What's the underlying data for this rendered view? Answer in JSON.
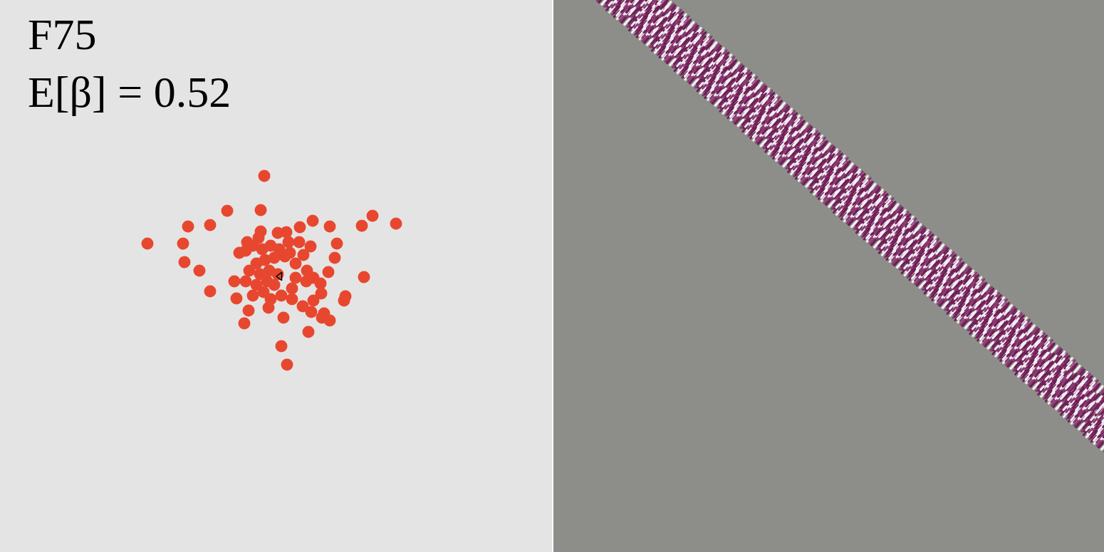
{
  "chart_data": {
    "type": "scatter",
    "title": "F75",
    "subtitle": "E[β] = 0.52",
    "xlim": [
      0,
      775
    ],
    "ylim": [
      0,
      775
    ],
    "tick_labels": false,
    "grid": false,
    "series": [
      {
        "color": "#e8472f",
        "marker": "circle",
        "x": [
          371,
          366,
          319,
          264,
          295,
          207,
          257,
          259,
          280,
          295,
          343,
          332,
          395,
          403,
          433,
          463,
          452,
          483,
          485,
          511,
          461,
          470,
          473,
          463,
          439,
          421,
          508,
          523,
          556,
          329,
          349,
          377,
          398,
          437,
          440,
          450,
          451,
          431,
          426,
          436,
          402,
          407,
          390,
          363,
          336,
          345,
          355,
          368,
          380,
          392,
          400,
          385,
          372,
          360,
          350,
          365,
          378,
          390,
          375,
          360,
          385,
          370,
          355,
          380,
          395,
          410,
          410,
          345,
          415,
          420,
          430,
          440,
          415,
          366,
          347,
          405,
          425,
          455
        ],
        "y": [
          528,
          480,
          479,
          457,
          459,
          433,
          433,
          407,
          395,
          366,
          321,
          356,
          289,
          263,
          309,
          325,
          329,
          353,
          359,
          386,
          393,
          413,
          433,
          457,
          465,
          456,
          458,
          472,
          461,
          380,
          339,
          343,
          329,
          337,
          353,
          377,
          363,
          395,
          417,
          429,
          449,
          420,
          448,
          441,
          420,
          423,
          430,
          425,
          430,
          425,
          415,
          413,
          410,
          405,
          395,
          390,
          395,
          390,
          380,
          375,
          375,
          365,
          360,
          355,
          360,
          370,
          355,
          380,
          405,
          435,
          380,
          385,
          385,
          450,
          435,
          435,
          345,
          335
        ]
      },
      {
        "color": "#000000",
        "marker": "triangle-left-open",
        "x": [
          393
        ],
        "y": [
          387
        ]
      }
    ]
  }
}
